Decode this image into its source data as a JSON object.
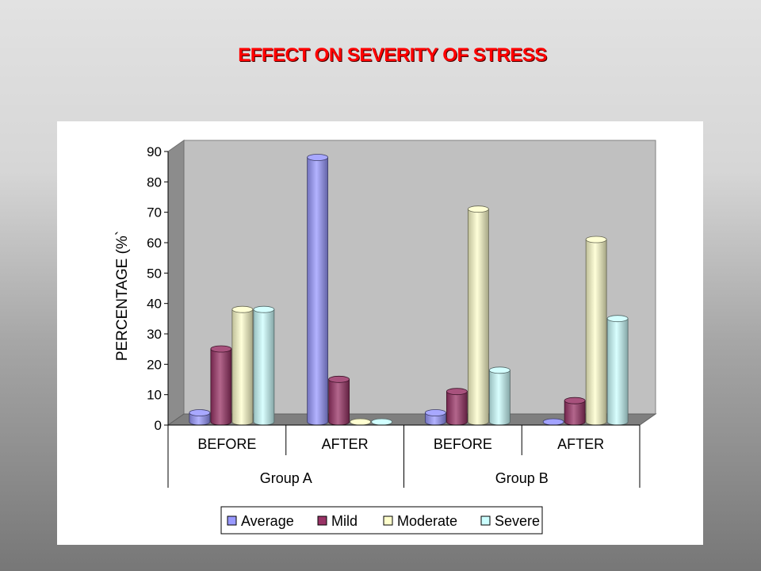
{
  "slide": {
    "title": "EFFECT ON SEVERITY OF STRESS"
  },
  "chart_data": {
    "type": "bar",
    "subtype": "3d-cylinder-clustered",
    "title": "",
    "ylabel": "PERCENTAGE (%)",
    "ylabel_rendered": "PERCENTAGE (%`",
    "xlabel": "",
    "ylim": [
      0,
      90
    ],
    "yticks": [
      0,
      10,
      20,
      30,
      40,
      50,
      60,
      70,
      80,
      90
    ],
    "grid": false,
    "legend_position": "bottom",
    "categories": [
      {
        "group": "Group A",
        "label": "BEFORE"
      },
      {
        "group": "Group A",
        "label": "AFTER"
      },
      {
        "group": "Group B",
        "label": "BEFORE"
      },
      {
        "group": "Group B",
        "label": "AFTER"
      }
    ],
    "groups": [
      "Group A",
      "Group B"
    ],
    "series": [
      {
        "name": "Average",
        "color": "#9999ff",
        "values": [
          3,
          87,
          3,
          0
        ]
      },
      {
        "name": "Mild",
        "color": "#993366",
        "values": [
          24,
          14,
          10,
          7
        ]
      },
      {
        "name": "Moderate",
        "color": "#ffffcc",
        "values": [
          37,
          0,
          70,
          60
        ]
      },
      {
        "name": "Severe",
        "color": "#ccffff",
        "values": [
          37,
          0,
          17,
          34
        ]
      }
    ]
  }
}
